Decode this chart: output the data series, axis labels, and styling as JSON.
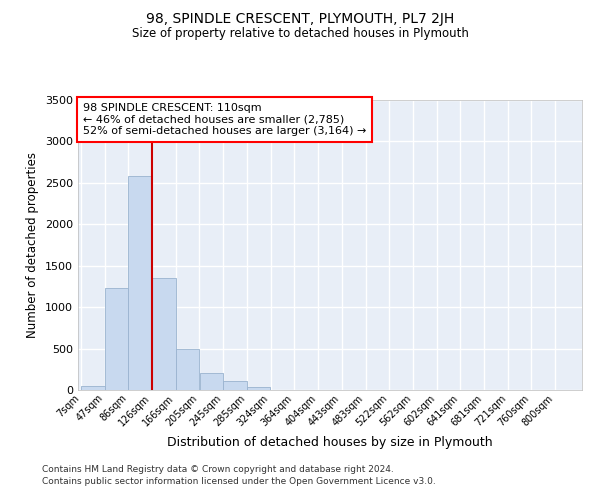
{
  "title": "98, SPINDLE CRESCENT, PLYMOUTH, PL7 2JH",
  "subtitle": "Size of property relative to detached houses in Plymouth",
  "xlabel": "Distribution of detached houses by size in Plymouth",
  "ylabel": "Number of detached properties",
  "bar_color": "#c8d9ef",
  "bar_edge_color": "#9ab3cf",
  "bg_color": "#e8eef7",
  "grid_color": "#ffffff",
  "annotation_text": "98 SPINDLE CRESCENT: 110sqm\n← 46% of detached houses are smaller (2,785)\n52% of semi-detached houses are larger (3,164) →",
  "vline_color": "#cc0000",
  "vline_x_index": 3,
  "bin_starts": [
    7,
    47,
    86,
    126,
    166,
    205,
    245,
    285,
    324,
    364,
    404,
    443,
    483,
    522,
    562,
    602,
    641,
    681,
    721,
    760,
    800
  ],
  "bin_width": 39,
  "values": [
    50,
    1230,
    2580,
    1350,
    500,
    200,
    110,
    40,
    5,
    5,
    5,
    0,
    0,
    0,
    0,
    0,
    0,
    0,
    0,
    0,
    0
  ],
  "ylim": [
    0,
    3500
  ],
  "yticks": [
    0,
    500,
    1000,
    1500,
    2000,
    2500,
    3000,
    3500
  ],
  "xtick_labels": [
    "7sqm",
    "47sqm",
    "86sqm",
    "126sqm",
    "166sqm",
    "205sqm",
    "245sqm",
    "285sqm",
    "324sqm",
    "364sqm",
    "404sqm",
    "443sqm",
    "483sqm",
    "522sqm",
    "562sqm",
    "602sqm",
    "641sqm",
    "681sqm",
    "721sqm",
    "760sqm",
    "800sqm"
  ],
  "footer_line1": "Contains HM Land Registry data © Crown copyright and database right 2024.",
  "footer_line2": "Contains public sector information licensed under the Open Government Licence v3.0."
}
